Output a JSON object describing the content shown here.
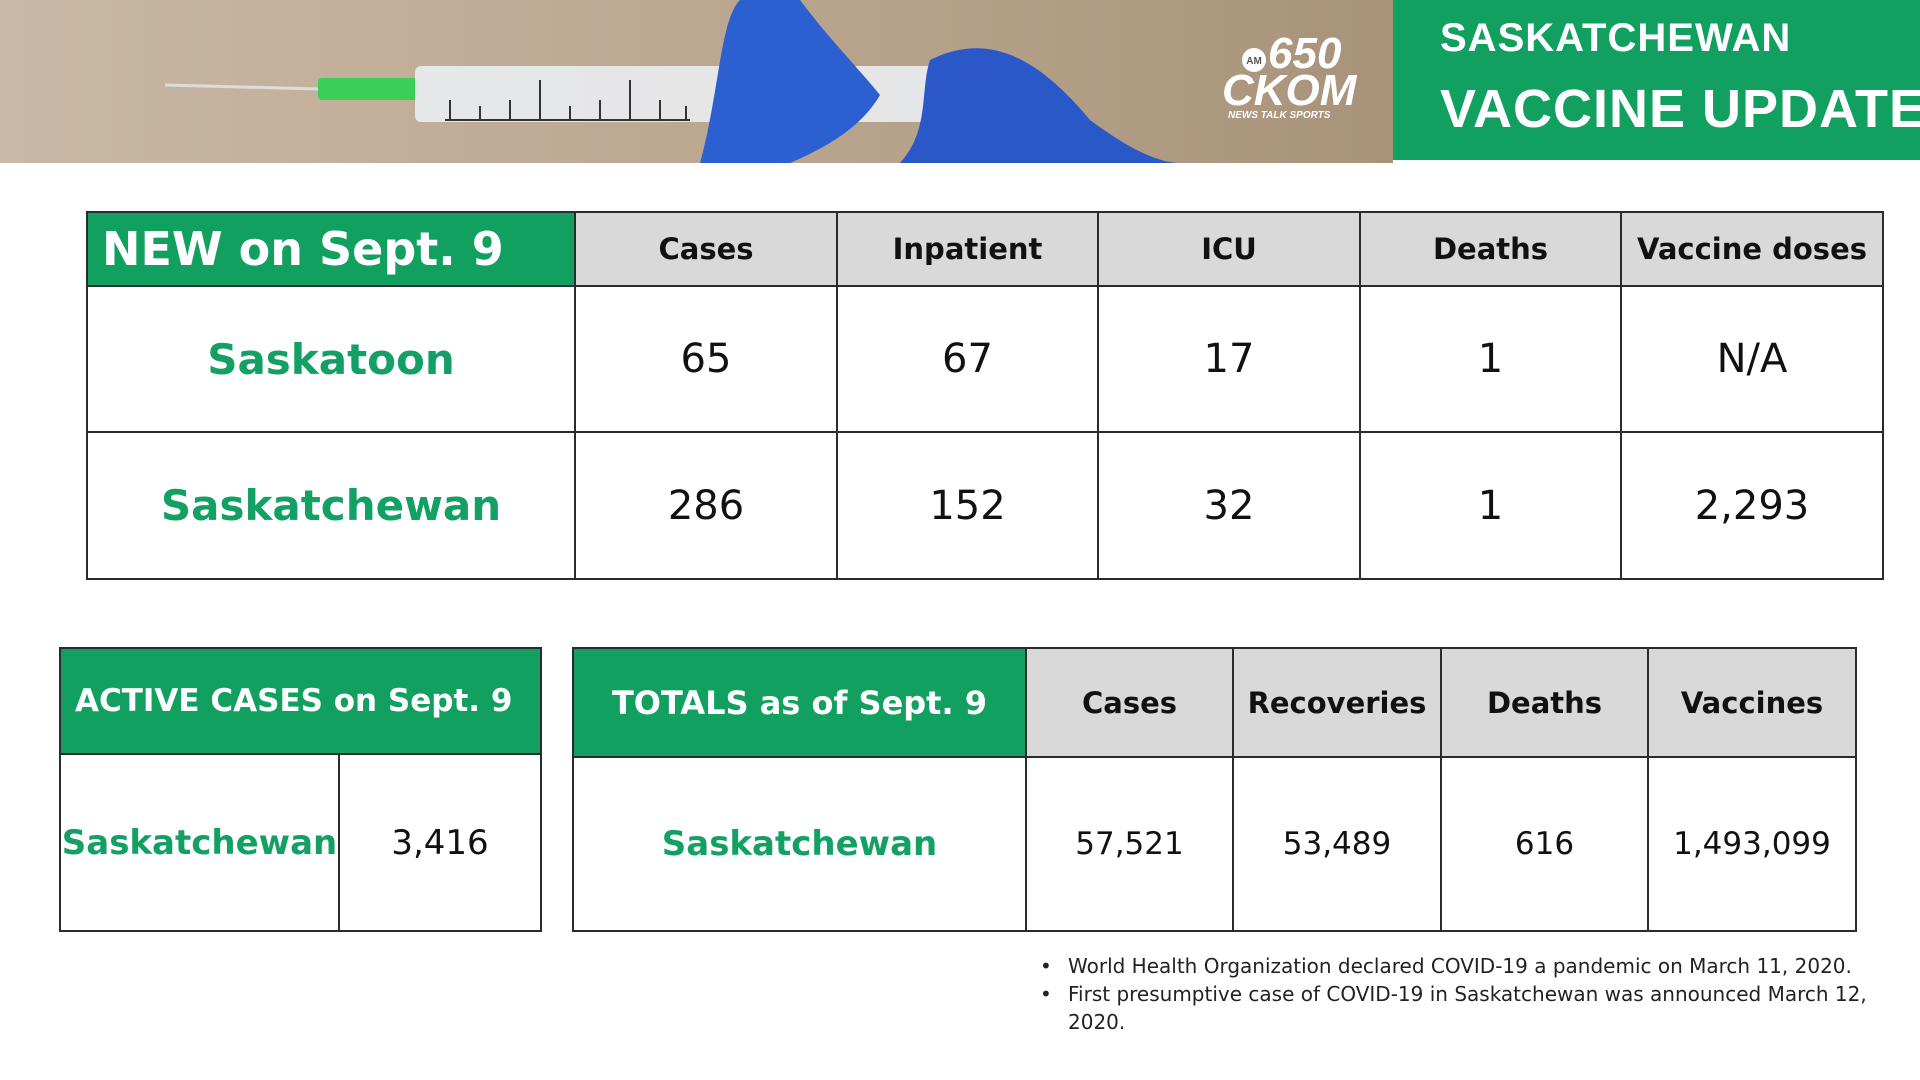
{
  "header": {
    "title_line1": "SASKATCHEWAN",
    "title_line2": "VACCINE UPDATES",
    "logo": {
      "am": "AM",
      "number": "650",
      "name": "CKOM",
      "tagline": "NEWS TALK SPORTS"
    }
  },
  "new_table": {
    "title": "NEW on Sept. 9",
    "columns": [
      "Cases",
      "Inpatient",
      "ICU",
      "Deaths",
      "Vaccine doses"
    ],
    "rows": [
      {
        "name": "Saskatoon",
        "values": [
          "65",
          "67",
          "17",
          "1",
          "N/A"
        ]
      },
      {
        "name": "Saskatchewan",
        "values": [
          "286",
          "152",
          "32",
          "1",
          "2,293"
        ]
      }
    ]
  },
  "active_table": {
    "title": "ACTIVE CASES on Sept. 9",
    "rows": [
      {
        "name": "Saskatchewan",
        "value": "3,416"
      }
    ]
  },
  "totals_table": {
    "title": "TOTALS as of Sept. 9",
    "columns": [
      "Cases",
      "Recoveries",
      "Deaths",
      "Vaccines"
    ],
    "rows": [
      {
        "name": "Saskatchewan",
        "values": [
          "57,521",
          "53,489",
          "616",
          "1,493,099"
        ]
      }
    ]
  },
  "notes": [
    "World Health Organization declared COVID-19 a pandemic on March 11, 2020.",
    "First presumptive case of COVID-19 in Saskatchewan was announced March 12, 2020."
  ]
}
